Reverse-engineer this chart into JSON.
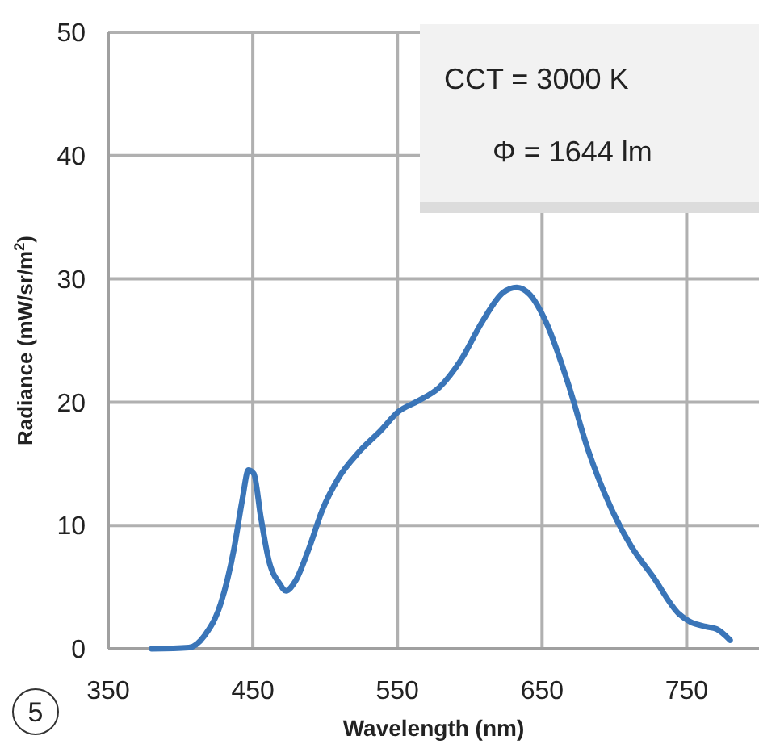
{
  "chart_data": {
    "type": "line",
    "xlabel": "Wavelength (nm)",
    "ylabel": "Radiance (mW/sr/m$^{2}$)",
    "x": [
      380,
      405.8,
      416.8,
      427.9,
      437,
      442.6,
      447,
      450.7,
      455.5,
      461,
      468.4,
      472.9,
      479.5,
      488.7,
      497.9,
      509,
      523.7,
      538.5,
      550.3,
      564.3,
      579,
      593.8,
      608.5,
      623.2,
      632.5,
      641.7,
      652.7,
      667.5,
      682.2,
      697,
      711.7,
      726.4,
      744.9,
      752.3,
      763.3,
      770.7,
      780
    ],
    "series": [
      {
        "color": "#3a75b8",
        "values": [
          0,
          0.1,
          1.1,
          3.7,
          8.1,
          12,
          14.5,
          14.2,
          10.7,
          7.2,
          5.3,
          4.7,
          5.5,
          8.1,
          11.2,
          13.8,
          16,
          17.7,
          19.2,
          20.1,
          21.2,
          23.4,
          26.5,
          28.9,
          29.3,
          28.7,
          26.5,
          21.7,
          16,
          11.6,
          8.3,
          5.9,
          2.8,
          2.2,
          1.8,
          1.6,
          0.7
        ]
      }
    ],
    "xlim": [
      350,
      800
    ],
    "xticks": [
      350,
      450,
      550,
      650,
      750
    ],
    "ylim": [
      0,
      50
    ],
    "yticks": [
      0,
      10,
      20,
      30,
      40,
      50
    ],
    "grid": true,
    "marker": "none",
    "line_style": "solid",
    "annotations": [
      "CCT = 3000 K",
      "Φ = 1644 lm",
      "5"
    ]
  }
}
